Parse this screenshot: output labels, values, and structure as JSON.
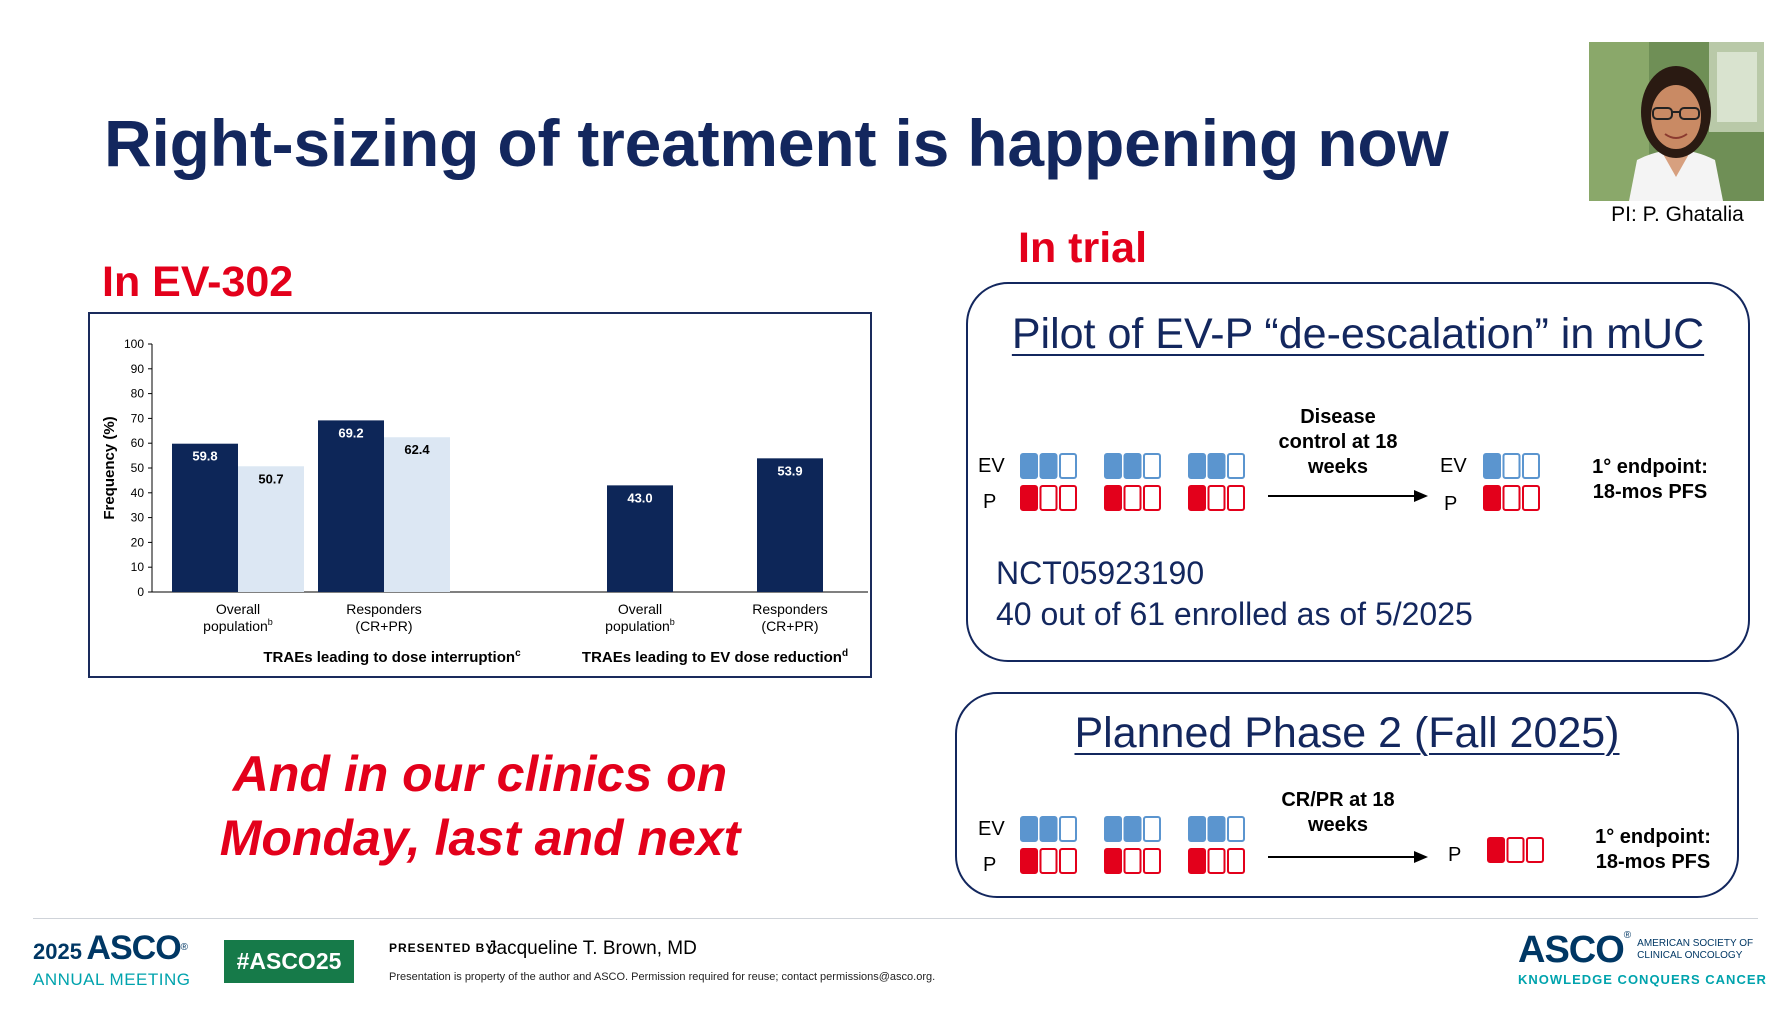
{
  "slide": {
    "title": "Right-sizing of treatment is happening now",
    "pi_caption": "PI: P. Ghatalia",
    "ev302_label": "In EV-302",
    "in_trial_label": "In trial",
    "closing_line1": "And in our clinics on",
    "closing_line2": "Monday, last and next"
  },
  "chart_data": {
    "type": "bar",
    "ylabel": "Frequency (%)",
    "ylim": [
      0,
      100
    ],
    "yticks": [
      0,
      10,
      20,
      30,
      40,
      50,
      60,
      70,
      80,
      90,
      100
    ],
    "groups": [
      {
        "label": "TRAEs leading to dose interruption",
        "label_sup": "c",
        "categories": [
          {
            "line1": "Overall",
            "line2": "population",
            "sup": "b",
            "bars": [
              59.8,
              50.7
            ]
          },
          {
            "line1": "Responders",
            "line2": "(CR+PR)",
            "sup": "",
            "bars": [
              69.2,
              62.4
            ]
          }
        ]
      },
      {
        "label": "TRAEs leading to EV dose reduction",
        "label_sup": "d",
        "categories": [
          {
            "line1": "Overall",
            "line2": "population",
            "sup": "b",
            "bars": [
              43.0
            ]
          },
          {
            "line1": "Responders",
            "line2": "(CR+PR)",
            "sup": "",
            "bars": [
              53.9
            ]
          }
        ]
      }
    ],
    "bar_labels": [
      "59.8",
      "50.7",
      "69.2",
      "62.4",
      "43.0",
      "53.9"
    ],
    "colors": {
      "dark": "#0d2658",
      "light": "#dce7f3"
    }
  },
  "pilot": {
    "title": "Pilot of EV-P “de-escalation” in mUC",
    "ev_label": "EV",
    "p_label": "P",
    "arrow_line1": "Disease",
    "arrow_line2": "control at 18",
    "arrow_line3": "weeks",
    "endpoint_line1": "1° endpoint:",
    "endpoint_line2": "18-mos PFS",
    "nct": "NCT05923190",
    "enrolled": "40 out of 61 enrolled as of 5/2025"
  },
  "phase2": {
    "title": "Planned Phase 2 (Fall 2025)",
    "ev_label": "EV",
    "p_label": "P",
    "arrow_line1": "CR/PR at 18",
    "arrow_line2": "weeks",
    "endpoint_line1": "1° endpoint:",
    "endpoint_line2": "18-mos PFS"
  },
  "footer": {
    "meeting_year": "2025",
    "meeting_brand": "ASCO",
    "meeting_name": "ANNUAL MEETING",
    "hashtag": "#ASCO25",
    "presented_by": "PRESENTED BY:",
    "presenter": "Jacqueline T. Brown, MD",
    "property_note": "Presentation is property of the author and ASCO. Permission required for reuse; contact permissions@asco.org.",
    "org_brand": "ASCO",
    "org_line1": "AMERICAN SOCIETY OF",
    "org_line2": "CLINICAL ONCOLOGY",
    "org_tagline": "KNOWLEDGE CONQUERS CANCER"
  },
  "colors": {
    "navy": "#13275e",
    "red": "#e3001b",
    "dose_blue": "#5b95cf",
    "dose_red": "#e3001b",
    "asco_teal": "#00a3ad",
    "asco_navy": "#003764",
    "hashtag_green": "#167a49"
  }
}
